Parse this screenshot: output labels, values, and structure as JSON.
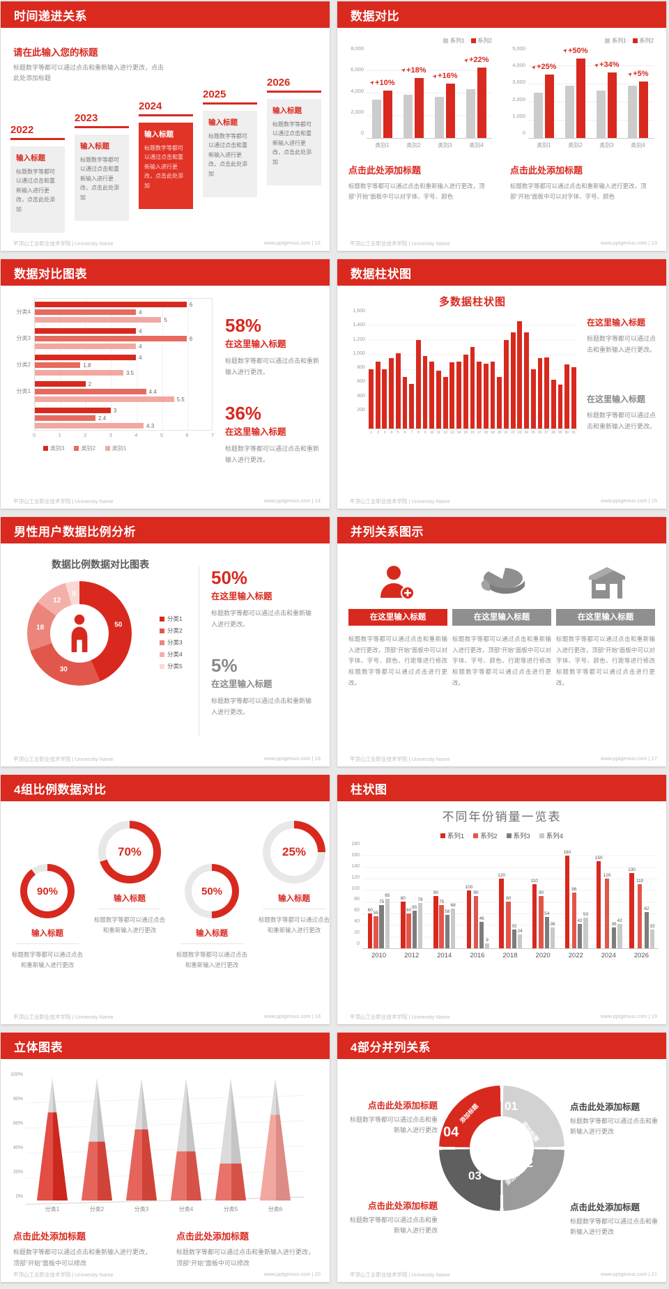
{
  "common": {
    "university": "平顶山工业职业技术学院 | University Name",
    "site": "www.pptgenius.com"
  },
  "icons": {
    "arrow": "➤"
  },
  "slides": [
    {
      "title": "时间递进关系",
      "page": "12",
      "intro_title": "请在此输入您的标题",
      "intro_body": "标题数字等都可以通过点击和重新输入进行更改，点击此处添加标题",
      "card_title": "输入标题",
      "card_body": "标题数字等都可以通过点击和重新输入进行更改，点击此处添加",
      "years": [
        "2022",
        "2023",
        "2024",
        "2025",
        "2026"
      ],
      "highlight_index": 2
    },
    {
      "title": "数据对比",
      "page": "13",
      "caption_title": "点击此处添加标题",
      "caption_body": "标题数字等都可以通过点击和重新输入进行更改，顶部“开始”面板中可以对字体、字号、颜色"
    },
    {
      "title": "数据对比图表",
      "page": "14",
      "stats": [
        {
          "value": "58%",
          "heading": "在这里输入标题",
          "body": "标题数字等都可以通过点击和重新输入进行更改。"
        },
        {
          "value": "36%",
          "heading": "在这里输入标题",
          "body": "标题数字等都可以通过点击和重新输入进行更改。"
        }
      ]
    },
    {
      "title": "数据柱状图",
      "page": "15",
      "chart_title": "多数据柱状图",
      "blocks": [
        {
          "heading": "在这里输入标题",
          "body": "标题数字等都可以通过点击和重新输入进行更改。"
        },
        {
          "heading": "在这里输入标题",
          "body": "标题数字等都可以通过点击和重新输入进行更改。"
        }
      ]
    },
    {
      "title": "男性用户数据比例分析",
      "page": "16",
      "chart_title": "数据比例数据对比图表",
      "stats": [
        {
          "value": "50%",
          "heading": "在这里输入标题",
          "body": "标题数字等都可以通过点击和重新输入进行更改。"
        },
        {
          "value": "5%",
          "heading": "在这里输入标题",
          "body": "标题数字等都可以通过点击和重新输入进行更改。"
        }
      ]
    },
    {
      "title": "并列关系图示",
      "page": "17",
      "column_heading": "在这里输入标题",
      "column_body": "标题数字等都可以通过点击和重新输入进行更改，顶部“开始”面板中可以对字体、字号、颜色、行距等进行修改标题数字等都可以通过点击进行更改。"
    },
    {
      "title": "4组比例数据对比",
      "page": "18",
      "item_heading": "输入标题",
      "item_body": "标题数字等都可以通过点击和重新输入进行更改"
    },
    {
      "title": "柱状图",
      "page": "19"
    },
    {
      "title": "立体图表",
      "page": "20",
      "caption_heading": "点击此处添加标题",
      "caption_body": "标题数字等都可以通过点击和重新输入进行更改，顶部“开始”面板中可以修改"
    },
    {
      "title": "4部分并列关系",
      "page": "21",
      "blocks_heading": "点击此处添加标题",
      "blocks_body": "标题数字等都可以通过点击和重新输入进行更改"
    }
  ],
  "chart_data": [
    {
      "slide": "数据对比 左图",
      "type": "bar",
      "categories": [
        "类别1",
        "类别2",
        "类别3",
        "类别4"
      ],
      "series": [
        {
          "name": "系列1",
          "color": "#cccccc",
          "values": [
            3400,
            3800,
            3650,
            4300
          ]
        },
        {
          "name": "系列2",
          "color": "#d8291f",
          "values": [
            4200,
            5300,
            4800,
            6200
          ]
        }
      ],
      "annotations": [
        "+10%",
        "+18%",
        "+16%",
        "+22%"
      ],
      "ylim": [
        0,
        8000
      ],
      "yticks": [
        "8,000",
        "6,000",
        "4,000",
        "2,000",
        "0"
      ],
      "legend_position": "top-right"
    },
    {
      "slide": "数据对比 右图",
      "type": "bar",
      "categories": [
        "类别1",
        "类别2",
        "类别3",
        "类别4"
      ],
      "series": [
        {
          "name": "系列1",
          "color": "#cccccc",
          "values": [
            2500,
            2900,
            2600,
            2900
          ]
        },
        {
          "name": "系列2",
          "color": "#d8291f",
          "values": [
            3500,
            4400,
            3600,
            3100
          ]
        }
      ],
      "annotations": [
        "+25%",
        "+50%",
        "+34%",
        "+5%"
      ],
      "ylim": [
        0,
        5000
      ],
      "yticks": [
        "5,000",
        "4,000",
        "3,000",
        "2,000",
        "1,000",
        "0"
      ],
      "legend_position": "top-right"
    },
    {
      "slide": "数据对比图表",
      "type": "bar",
      "orientation": "horizontal",
      "groups": [
        "分类4",
        "分类3",
        "分类2",
        "分类1",
        ""
      ],
      "series": [
        {
          "name": "类别3",
          "color": "#d8291f",
          "values": [
            6,
            4,
            4,
            2,
            3
          ]
        },
        {
          "name": "类别2",
          "color": "#e76a60",
          "values": [
            4,
            6,
            1.8,
            4.4,
            2.4
          ]
        },
        {
          "name": "类别1",
          "color": "#f2a8a1",
          "values": [
            5,
            4,
            3.5,
            5.5,
            4.3
          ]
        }
      ],
      "xlim": [
        0,
        7
      ],
      "xticks": [
        "0",
        "1",
        "2",
        "3",
        "4",
        "5",
        "6",
        "7"
      ],
      "legend_position": "bottom"
    },
    {
      "slide": "多数据柱状图",
      "type": "bar",
      "title": "多数据柱状图",
      "color": "#d8291f",
      "x": [
        "1",
        "2",
        "3",
        "4",
        "5",
        "6",
        "7",
        "8",
        "9",
        "10",
        "11",
        "12",
        "13",
        "14",
        "15",
        "16",
        "17",
        "18",
        "19",
        "20",
        "21",
        "22",
        "23",
        "24",
        "25",
        "26",
        "27",
        "28",
        "29",
        "30",
        "31"
      ],
      "values": [
        800,
        900,
        800,
        950,
        1020,
        700,
        600,
        1200,
        980,
        900,
        780,
        700,
        890,
        900,
        1000,
        1100,
        900,
        880,
        900,
        700,
        1200,
        1300,
        1450,
        1300,
        800,
        950,
        960,
        660,
        590,
        870,
        830
      ],
      "ylim": [
        0,
        1600
      ],
      "yticks": [
        "1,600",
        "1,400",
        "1,200",
        "1,000",
        "800",
        "600",
        "400",
        "200"
      ]
    },
    {
      "slide": "数据比例数据对比图表",
      "type": "pie",
      "title": "数据比例数据对比图表",
      "labels": [
        "分类1",
        "分类2",
        "分类3",
        "分类4",
        "分类5"
      ],
      "values": [
        50,
        30,
        18,
        12,
        5
      ],
      "colors": [
        "#d9291e",
        "#e2574c",
        "#eb857b",
        "#f3b0a9",
        "#fad9d5"
      ],
      "center_icon": "male-person"
    },
    {
      "slide": "4组比例数据对比",
      "type": "progress-rings",
      "values": [
        90,
        70,
        50,
        25
      ],
      "labels": [
        "90%",
        "70%",
        "50%",
        "25%"
      ],
      "color": "#d8291f",
      "track_color": "#e8e8e8"
    },
    {
      "slide": "不同年份销量一览表",
      "type": "bar",
      "title": "不同年份销量一览表",
      "categories": [
        "2010",
        "2012",
        "2014",
        "2016",
        "2018",
        "2020",
        "2022",
        "2024",
        "2026"
      ],
      "series": [
        {
          "name": "系列1",
          "color": "#d8291f",
          "values": [
            60,
            80,
            90,
            100,
            120,
            110,
            160,
            150,
            130
          ]
        },
        {
          "name": "系列2",
          "color": "#e25549",
          "values": [
            55,
            60,
            75,
            90,
            80,
            90,
            96,
            120,
            110
          ]
        },
        {
          "name": "系列3",
          "color": "#7d7d7d",
          "values": [
            75,
            65,
            58,
            46,
            32,
            54,
            42,
            36,
            62
          ]
        },
        {
          "name": "系列4",
          "color": "#c9c9c9",
          "values": [
            85,
            78,
            68,
            9,
            24,
            36,
            53,
            42,
            32
          ]
        }
      ],
      "ylim": [
        0,
        180
      ],
      "yticks": [
        "180",
        "160",
        "140",
        "120",
        "100",
        "80",
        "60",
        "40",
        "20",
        "0"
      ],
      "legend_position": "top",
      "data_labels": true
    },
    {
      "slide": "立体图表",
      "type": "cone",
      "categories": [
        "分类1",
        "分类2",
        "分类3",
        "分类4",
        "分类5",
        "分类6"
      ],
      "values": [
        72,
        48,
        58,
        40,
        30,
        70
      ],
      "colors": [
        "#dc2b20",
        "#e0483d",
        "#e0483d",
        "#e4584d",
        "#e4584d",
        "#ee978f"
      ],
      "yticks": [
        "100%",
        "80%",
        "60%",
        "40%",
        "20%",
        "0%"
      ]
    },
    {
      "slide": "4部分并列关系",
      "type": "ring-diagram",
      "segments": [
        {
          "num": "01",
          "label": "添加标题",
          "color": "#d2d2d2"
        },
        {
          "num": "02",
          "label": "添加标题",
          "color": "#9b9b9b"
        },
        {
          "num": "03",
          "label": "添加标题",
          "color": "#5f5f5f"
        },
        {
          "num": "04",
          "label": "添加标题",
          "color": "#d8291f"
        }
      ]
    }
  ]
}
